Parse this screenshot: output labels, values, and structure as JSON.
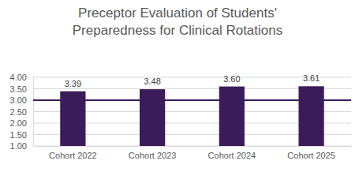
{
  "chart_data": {
    "type": "bar",
    "title": "Preceptor Evaluation of Students' Preparedness for Clinical Rotations",
    "categories": [
      "Cohort 2022",
      "Cohort 2023",
      "Cohort 2024",
      "Cohort 2025"
    ],
    "values": [
      3.39,
      3.48,
      3.6,
      3.61
    ],
    "value_labels": [
      "3.39",
      "3.48",
      "3.60",
      "3.61"
    ],
    "data_labels": true,
    "color": "#3b1c5a",
    "threshold": 3,
    "ylim": [
      1,
      4
    ],
    "yticks": [
      {
        "value": 1,
        "label": "1.00"
      },
      {
        "value": 1.5,
        "label": "1.50"
      },
      {
        "value": 2,
        "label": "2.00"
      },
      {
        "value": 2.5,
        "label": "2.50"
      },
      {
        "value": 3,
        "label": "3.00"
      },
      {
        "value": 3.5,
        "label": "3.50"
      },
      {
        "value": 4,
        "label": "4.00"
      }
    ],
    "grid": true
  }
}
